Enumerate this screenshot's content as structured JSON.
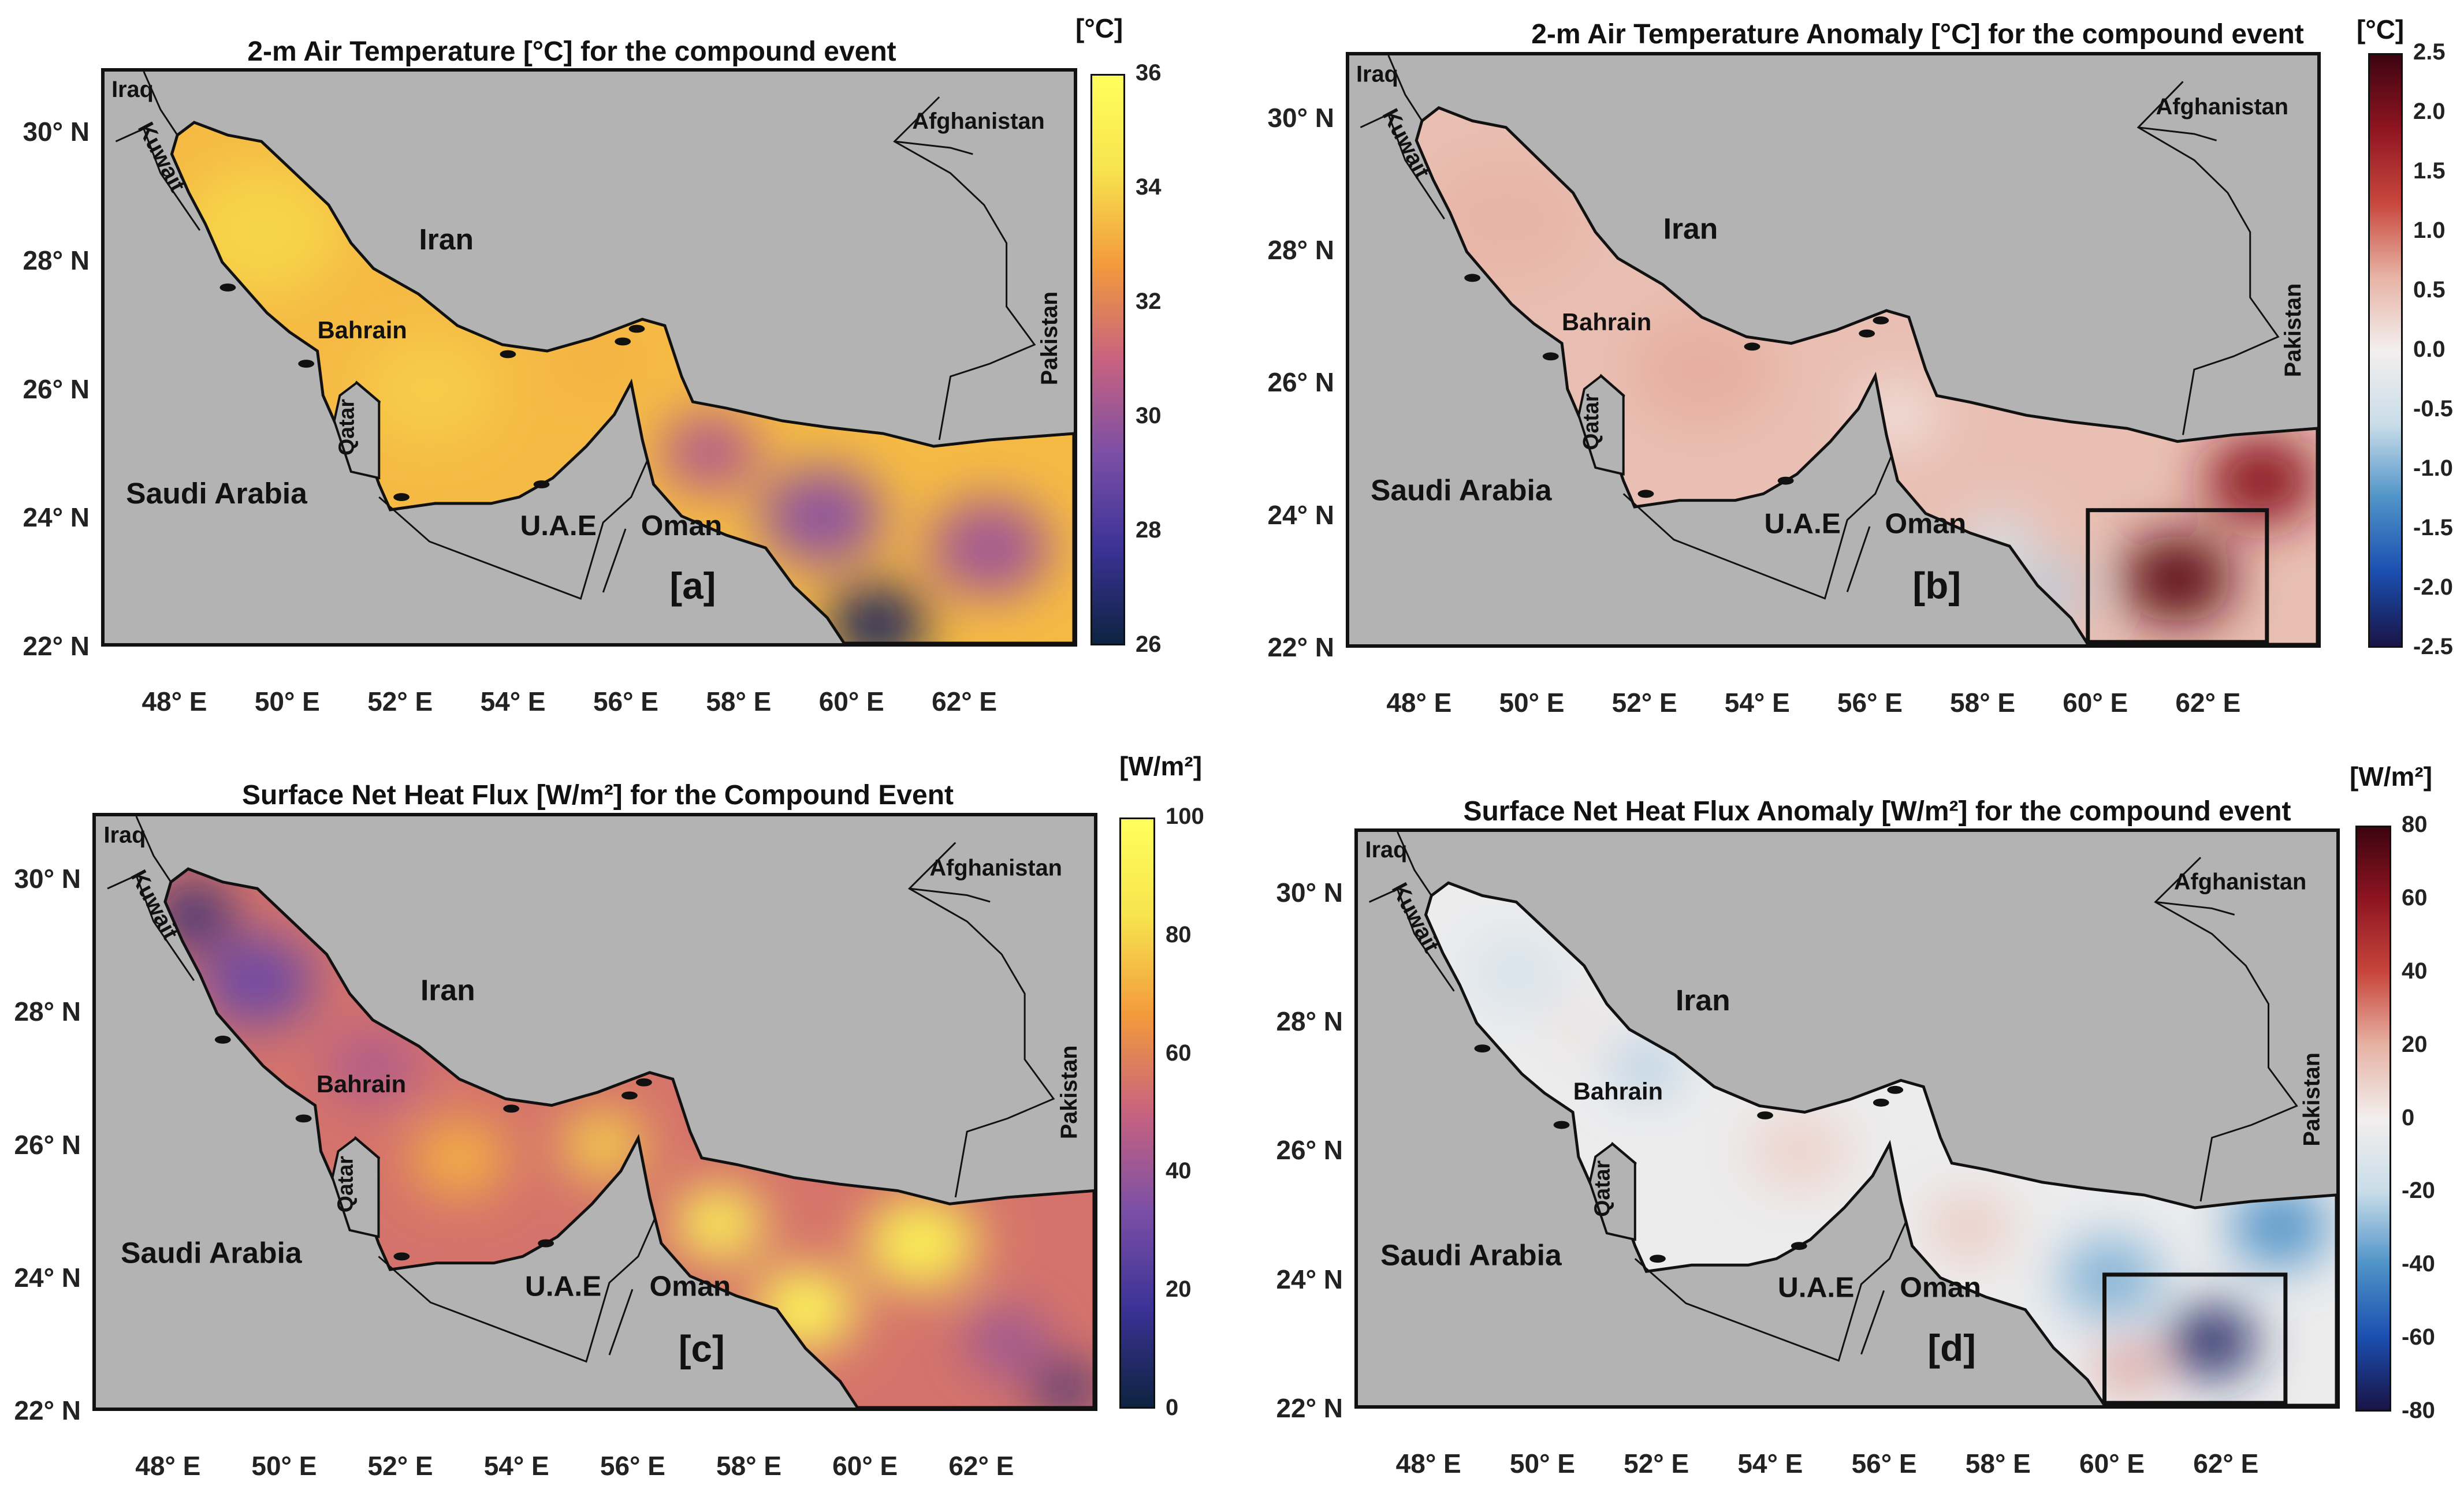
{
  "panels": [
    {
      "id": "a",
      "title": "2-m Air Temperature [°C] for the compound event",
      "unit": "[°C]",
      "label": "[a]",
      "colorbar_ticks": [
        "36",
        "34",
        "32",
        "30",
        "28",
        "26"
      ],
      "colormap": "thermal",
      "has_box": false
    },
    {
      "id": "b",
      "title": "2-m Air Temperature Anomaly [°C] for the compound event",
      "unit": "[°C]",
      "label": "[b]",
      "colorbar_ticks": [
        "2.5",
        "2.0",
        "1.5",
        "1.0",
        "0.5",
        "0.0",
        "-0.5",
        "-1.0",
        "-1.5",
        "-2.0",
        "-2.5"
      ],
      "colormap": "diverging",
      "has_box": true
    },
    {
      "id": "c",
      "title": "Surface Net Heat Flux [W/m²] for the Compound Event",
      "unit": "[W/m²]",
      "label": "[c]",
      "colorbar_ticks": [
        "100",
        "80",
        "60",
        "40",
        "20",
        "0"
      ],
      "colormap": "thermal",
      "has_box": false
    },
    {
      "id": "d",
      "title": "Surface Net Heat Flux Anomaly [W/m²] for the compound event",
      "unit": "[W/m²]",
      "label": "[d]",
      "colorbar_ticks": [
        "80",
        "60",
        "40",
        "20",
        "0",
        "-20",
        "-40",
        "-60",
        "-80"
      ],
      "colormap": "diverging",
      "has_box": true
    }
  ],
  "axes": {
    "lat_labels": [
      "30° N",
      "28° N",
      "26° N",
      "24° N",
      "22° N"
    ],
    "lon_labels": [
      "48° E",
      "50° E",
      "52° E",
      "54° E",
      "56° E",
      "58° E",
      "60° E",
      "62° E"
    ]
  },
  "countries": {
    "iraq": "Iraq",
    "kuwait": "Kuwait",
    "iran": "Iran",
    "afghanistan": "Afghanistan",
    "pakistan": "Pakistan",
    "bahrain": "Bahrain",
    "qatar": "Qatar",
    "saudi": "Saudi Arabia",
    "uae": "U.A.E",
    "oman": "Oman"
  },
  "colors": {
    "land": "#b3b3b3",
    "thermal_stops": [
      "#0d2340",
      "#3b3296",
      "#7b4fa6",
      "#c7627f",
      "#f39a3c",
      "#f7e34e",
      "#ffff5c"
    ],
    "diverging_stops": [
      "#1a1446",
      "#1b4fb0",
      "#4f93c8",
      "#c9dde9",
      "#f3efee",
      "#e7b3a4",
      "#c8463c",
      "#8f1521",
      "#3d0410"
    ]
  }
}
